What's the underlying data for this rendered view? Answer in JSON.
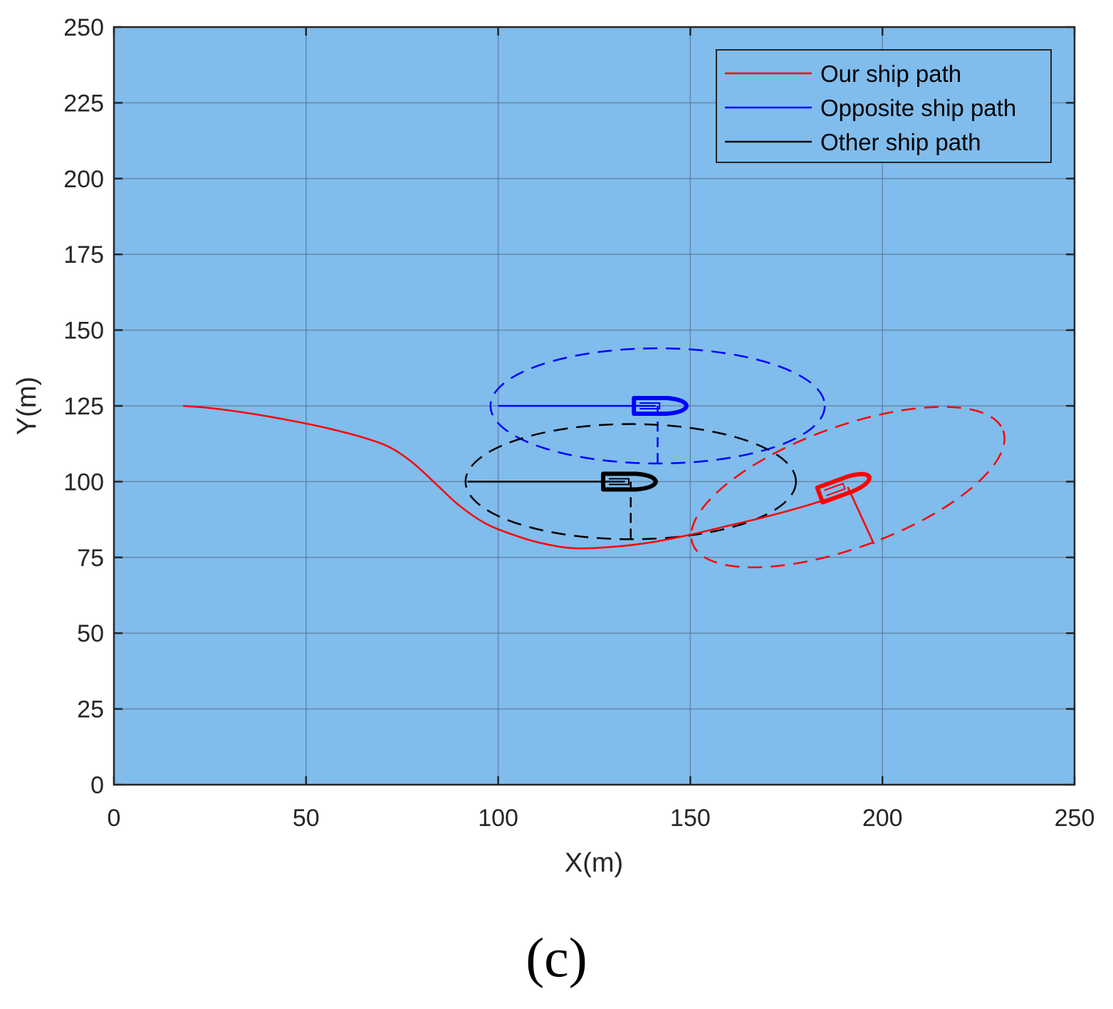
{
  "panel_caption": "(c)",
  "colors": {
    "plot_background": "#80bcec",
    "grid": "#5b7794",
    "our_ship": "#ff0000",
    "opposite_ship": "#0000ff",
    "other_ship": "#000000",
    "tick_text": "#262626"
  },
  "chart_data": {
    "type": "line",
    "xlabel": "X(m)",
    "ylabel": "Y(m)",
    "xlim": [
      0,
      250
    ],
    "ylim": [
      0,
      250
    ],
    "xticks": [
      0,
      50,
      100,
      150,
      200,
      250
    ],
    "yticks": [
      0,
      25,
      50,
      75,
      100,
      125,
      150,
      175,
      200,
      225,
      250
    ],
    "grid": true,
    "legend_position": "top-right",
    "series": [
      {
        "name": "Our ship path",
        "color": "#ff0000",
        "points": [
          [
            18,
            125
          ],
          [
            25,
            124.3
          ],
          [
            35,
            122.6
          ],
          [
            45,
            120.4
          ],
          [
            55,
            117.8
          ],
          [
            65,
            114.5
          ],
          [
            72,
            111.2
          ],
          [
            78,
            106
          ],
          [
            84,
            99
          ],
          [
            90,
            92
          ],
          [
            97,
            86
          ],
          [
            105,
            82
          ],
          [
            112,
            79.5
          ],
          [
            120,
            78
          ],
          [
            130,
            78.5
          ],
          [
            140,
            80
          ],
          [
            150,
            82.5
          ],
          [
            160,
            85.5
          ],
          [
            170,
            88.5
          ],
          [
            180,
            92
          ],
          [
            190,
            96
          ]
        ]
      },
      {
        "name": "Opposite ship path",
        "color": "#0000ff",
        "points": [
          [
            100,
            125
          ],
          [
            141,
            125
          ]
        ]
      },
      {
        "name": "Other ship path",
        "color": "#000000",
        "points": [
          [
            92,
            100
          ],
          [
            133,
            100
          ]
        ]
      }
    ],
    "ship_markers": [
      {
        "color": "#0000ff",
        "x": 142,
        "y": 125,
        "heading_deg": 0
      },
      {
        "color": "#000000",
        "x": 134,
        "y": 100,
        "heading_deg": 0
      },
      {
        "color": "#ff0000",
        "x": 190,
        "y": 98.5,
        "heading_deg": 20
      }
    ],
    "safety_domains": [
      {
        "color": "#0000ff",
        "cx": 141.5,
        "cy": 125,
        "rx": 43.5,
        "ry": 19,
        "angle_deg": 0,
        "radial_end": [
          141.5,
          106
        ]
      },
      {
        "color": "#000000",
        "cx": 134.5,
        "cy": 100,
        "rx": 43,
        "ry": 19,
        "angle_deg": 0,
        "radial_end": [
          134.5,
          81
        ]
      },
      {
        "color": "#ff0000",
        "cx": 191,
        "cy": 98.2,
        "rx": 43,
        "ry": 20,
        "angle_deg": 20,
        "radial_end": [
          197.8,
          79.4
        ]
      }
    ]
  }
}
